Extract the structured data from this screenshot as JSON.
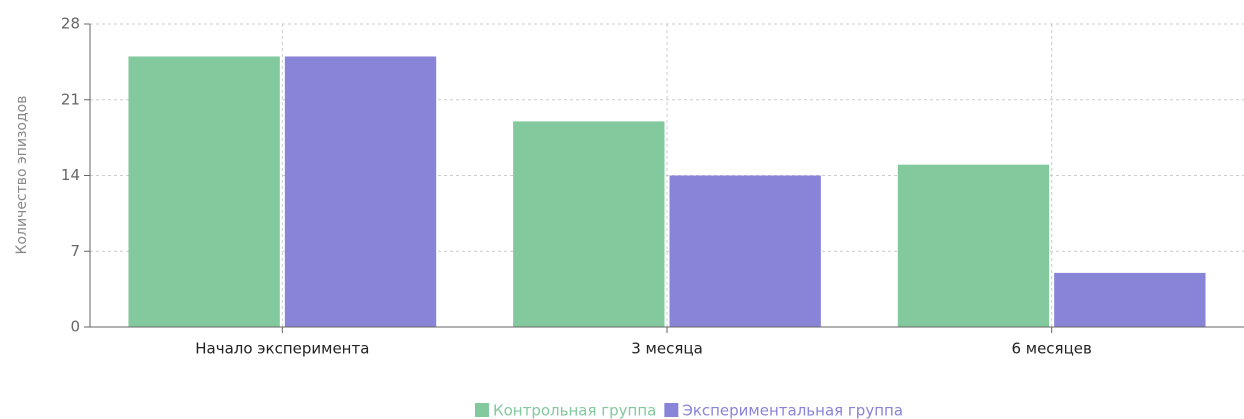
{
  "chart_data": {
    "type": "bar",
    "y_label": "Количество эпизодов",
    "categories": [
      "Начало эксперимента",
      "3 месяца",
      "6 месяцев"
    ],
    "series": [
      {
        "name": "Контрольная группа",
        "color": "#82c99e",
        "values": [
          25,
          19,
          15
        ]
      },
      {
        "name": "Экспериментальная группа",
        "color": "#8884d8",
        "values": [
          25,
          14,
          5
        ]
      }
    ],
    "ylim": [
      0,
      28
    ],
    "yticks": [
      0,
      7,
      14,
      21,
      28
    ],
    "grid": true
  }
}
